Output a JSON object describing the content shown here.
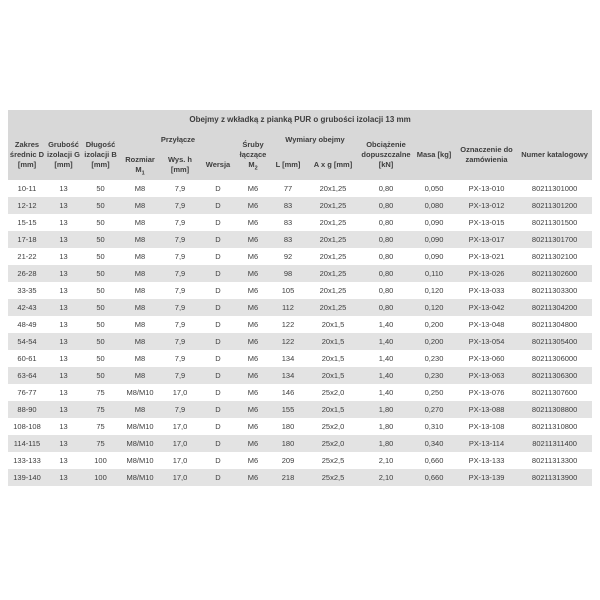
{
  "table": {
    "title": "Obejmy z wkładką z pianką PUR o grubości izolacji 13 mm",
    "header": {
      "zakres": "Zakres średnic D [mm]",
      "grubosc": "Grubość izolacji G [mm]",
      "dlugosc": "Długość izolacji B [mm]",
      "przylacze": "Przyłącze",
      "rozmiar": {
        "text": "Rozmiar M",
        "sub": "1"
      },
      "wys_h": "Wys. h [mm]",
      "wersja": "Wersja",
      "sruby": {
        "text": "Śruby łączące M",
        "sub": "2"
      },
      "wymiary": "Wymiary obejmy",
      "l": "L [mm]",
      "axg": "A x g [mm]",
      "obciazenie": "Obciążenie dopuszczalne [kN]",
      "masa": "Masa [kg]",
      "oznaczenie": "Oznaczenie do zamówienia",
      "numer": "Numer katalogowy"
    },
    "rows": [
      [
        "10-11",
        "13",
        "50",
        "M8",
        "7,9",
        "D",
        "M6",
        "77",
        "20x1,25",
        "0,80",
        "0,050",
        "PX-13-010",
        "80211301000"
      ],
      [
        "12-12",
        "13",
        "50",
        "M8",
        "7,9",
        "D",
        "M6",
        "83",
        "20x1,25",
        "0,80",
        "0,080",
        "PX-13-012",
        "80211301200"
      ],
      [
        "15-15",
        "13",
        "50",
        "M8",
        "7,9",
        "D",
        "M6",
        "83",
        "20x1,25",
        "0,80",
        "0,090",
        "PX-13-015",
        "80211301500"
      ],
      [
        "17-18",
        "13",
        "50",
        "M8",
        "7,9",
        "D",
        "M6",
        "83",
        "20x1,25",
        "0,80",
        "0,090",
        "PX-13-017",
        "80211301700"
      ],
      [
        "21-22",
        "13",
        "50",
        "M8",
        "7,9",
        "D",
        "M6",
        "92",
        "20x1,25",
        "0,80",
        "0,090",
        "PX-13-021",
        "80211302100"
      ],
      [
        "26-28",
        "13",
        "50",
        "M8",
        "7,9",
        "D",
        "M6",
        "98",
        "20x1,25",
        "0,80",
        "0,110",
        "PX-13-026",
        "80211302600"
      ],
      [
        "33-35",
        "13",
        "50",
        "M8",
        "7,9",
        "D",
        "M6",
        "105",
        "20x1,25",
        "0,80",
        "0,120",
        "PX-13-033",
        "80211303300"
      ],
      [
        "42-43",
        "13",
        "50",
        "M8",
        "7,9",
        "D",
        "M6",
        "112",
        "20x1,25",
        "0,80",
        "0,120",
        "PX-13-042",
        "80211304200"
      ],
      [
        "48-49",
        "13",
        "50",
        "M8",
        "7,9",
        "D",
        "M6",
        "122",
        "20x1,5",
        "1,40",
        "0,200",
        "PX-13-048",
        "80211304800"
      ],
      [
        "54-54",
        "13",
        "50",
        "M8",
        "7,9",
        "D",
        "M6",
        "122",
        "20x1,5",
        "1,40",
        "0,200",
        "PX-13-054",
        "80211305400"
      ],
      [
        "60-61",
        "13",
        "50",
        "M8",
        "7,9",
        "D",
        "M6",
        "134",
        "20x1,5",
        "1,40",
        "0,230",
        "PX-13-060",
        "80211306000"
      ],
      [
        "63-64",
        "13",
        "50",
        "M8",
        "7,9",
        "D",
        "M6",
        "134",
        "20x1,5",
        "1,40",
        "0,230",
        "PX-13-063",
        "80211306300"
      ],
      [
        "76-77",
        "13",
        "75",
        "M8/M10",
        "17,0",
        "D",
        "M6",
        "146",
        "25x2,0",
        "1,40",
        "0,250",
        "PX-13-076",
        "80211307600"
      ],
      [
        "88-90",
        "13",
        "75",
        "M8",
        "7,9",
        "D",
        "M6",
        "155",
        "20x1,5",
        "1,80",
        "0,270",
        "PX-13-088",
        "80211308800"
      ],
      [
        "108-108",
        "13",
        "75",
        "M8/M10",
        "17,0",
        "D",
        "M6",
        "180",
        "25x2,0",
        "1,80",
        "0,310",
        "PX-13-108",
        "80211310800"
      ],
      [
        "114-115",
        "13",
        "75",
        "M8/M10",
        "17,0",
        "D",
        "M6",
        "180",
        "25x2,0",
        "1,80",
        "0,340",
        "PX-13-114",
        "80211311400"
      ],
      [
        "133-133",
        "13",
        "100",
        "M8/M10",
        "17,0",
        "D",
        "M6",
        "209",
        "25x2,5",
        "2,10",
        "0,660",
        "PX-13-133",
        "80211313300"
      ],
      [
        "139-140",
        "13",
        "100",
        "M8/M10",
        "17,0",
        "D",
        "M6",
        "218",
        "25x2,5",
        "2,10",
        "0,660",
        "PX-13-139",
        "80211313900"
      ]
    ],
    "colors": {
      "header_bg": "#d8d8d8",
      "stripe_bg": "#e3e3e3",
      "text": "#3d3d3d"
    }
  }
}
